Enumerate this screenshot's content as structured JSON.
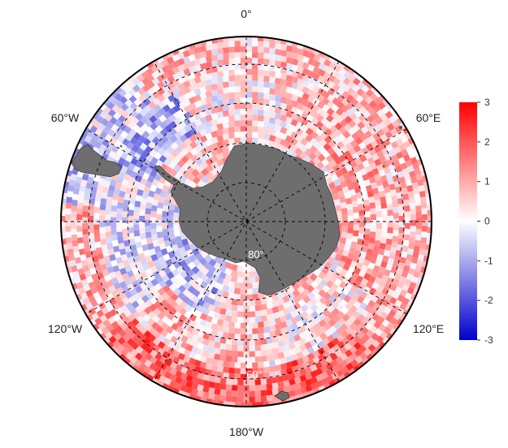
{
  "map": {
    "projection": "south polar stereographic",
    "longitude_labels": {
      "top": "0°",
      "upper_left": "60°W",
      "upper_right": "60°E",
      "lower_left": "120°W",
      "lower_right": "120°E",
      "bottom": "180°W"
    },
    "latitude_labels": [
      "80°",
      "60°"
    ],
    "colors": {
      "land": "#6e6e6e",
      "graticule": "#000000",
      "outline": "#000000"
    },
    "colorbar": {
      "min": -3,
      "max": 3,
      "ticks": [
        "3",
        "2",
        "1",
        "0",
        "-1",
        "-2",
        "-3"
      ],
      "colors": [
        "#0000cc",
        "#ffffff",
        "#ff0000"
      ]
    }
  }
}
